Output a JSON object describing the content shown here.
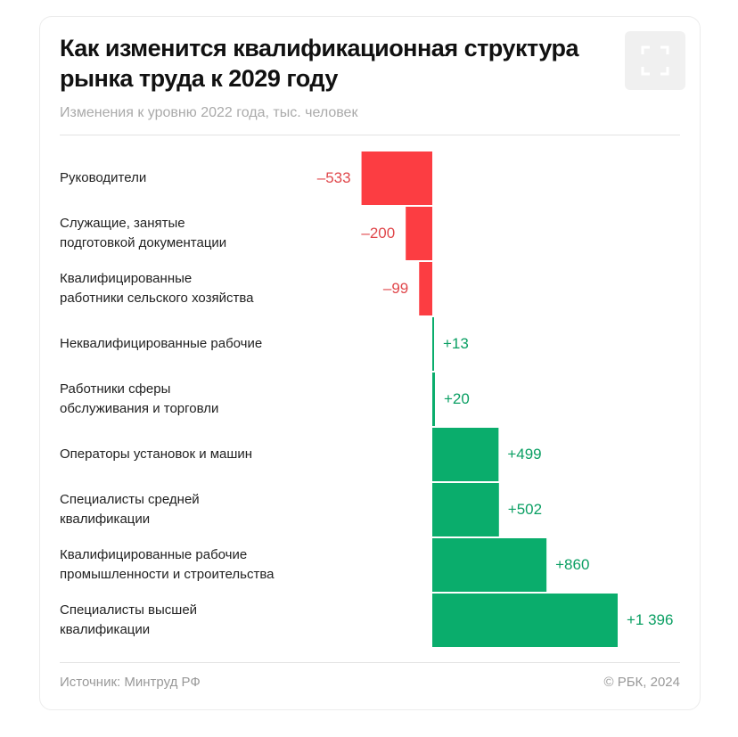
{
  "header": {
    "title": "Как изменится квалификационная структура рынка труда к 2029 году",
    "subtitle": "Изменения к уровню 2022 года, тыс. человек",
    "expand_icon": "expand-icon"
  },
  "footer": {
    "source": "Источник: Минтруд РФ",
    "copyright": "© РБК, 2024"
  },
  "colors": {
    "negative": "#fc3d42",
    "positive": "#0aad6c",
    "negative_label": "#e0484c",
    "positive_label": "#0a9f63"
  },
  "chart_data": {
    "type": "bar",
    "orientation": "horizontal",
    "title": "Как изменится квалификационная структура рынка труда к 2029 году",
    "subtitle": "Изменения к уровню 2022 года, тыс. человек",
    "categories": [
      "Руководители",
      "Служащие, занятые подготовкой документации",
      "Квалифицированные работники сельского хозяйства",
      "Неквалифицированные рабочие",
      "Работники сферы обслуживания и торговли",
      "Операторы установок и машин",
      "Специалисты средней квалификации",
      "Квалифицированные рабочие промышленности и строительства",
      "Специалисты высшей квалификации"
    ],
    "category_lines": [
      [
        "Руководители"
      ],
      [
        "Служащие, занятые",
        "подготовкой документации"
      ],
      [
        "Квалифицированные",
        "работники сельского хозяйства"
      ],
      [
        "Неквалифицированные рабочие"
      ],
      [
        "Работники сферы",
        "обслуживания и торговли"
      ],
      [
        "Операторы установок и машин"
      ],
      [
        "Специалисты средней",
        "квалификации"
      ],
      [
        "Квалифицированные рабочие",
        "промышленности и строительства"
      ],
      [
        "Специалисты высшей",
        "квалификации"
      ]
    ],
    "values": [
      -533,
      -200,
      -99,
      13,
      20,
      499,
      502,
      860,
      1396
    ],
    "data_labels": [
      "–533",
      "–200",
      "–99",
      "+13",
      "+20",
      "+499",
      "+502",
      "+860",
      "+1 396"
    ],
    "grid": false,
    "legend": "none"
  }
}
